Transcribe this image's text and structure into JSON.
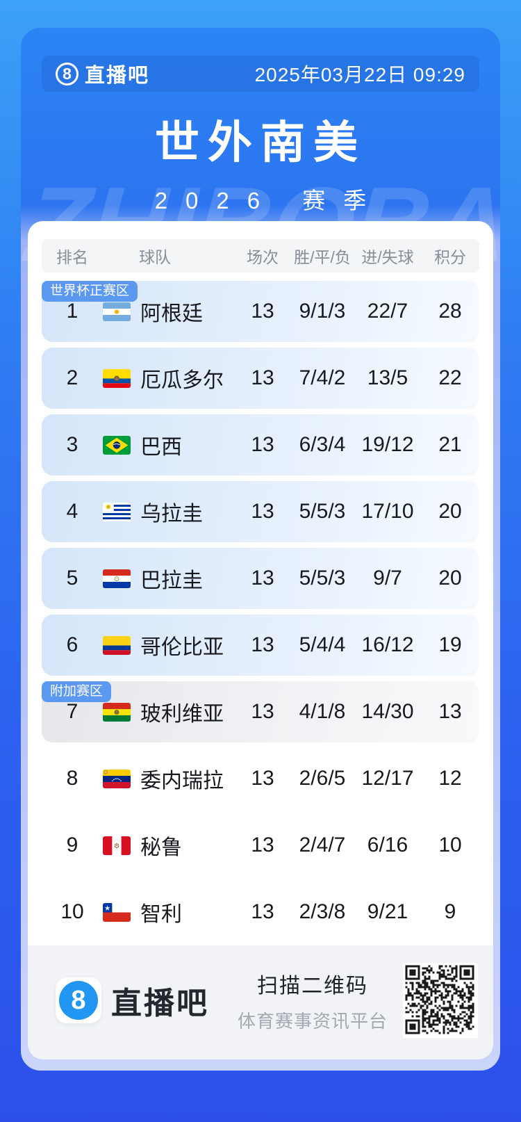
{
  "header": {
    "logo_glyph": "8",
    "logo_text": "直播吧",
    "datetime": "2025年03月22日 09:29"
  },
  "title": "世外南美",
  "subtitle": "2026 赛季",
  "watermark": "ZHIBOBA",
  "table": {
    "columns": [
      "排名",
      "球队",
      "场次",
      "胜/平/负",
      "进/失球",
      "积分"
    ],
    "zone_labels": {
      "qualify": "世界杯正赛区",
      "playoff": "附加赛区"
    },
    "rows": [
      {
        "rank": "1",
        "team": "阿根廷",
        "flag": "argentina",
        "played": "13",
        "wdl": "9/1/3",
        "goals": "22/7",
        "points": "28",
        "zone": "qualify",
        "badge": "世界杯正赛区"
      },
      {
        "rank": "2",
        "team": "厄瓜多尔",
        "flag": "ecuador",
        "played": "13",
        "wdl": "7/4/2",
        "goals": "13/5",
        "points": "22",
        "zone": "qualify",
        "badge": ""
      },
      {
        "rank": "3",
        "team": "巴西",
        "flag": "brazil",
        "played": "13",
        "wdl": "6/3/4",
        "goals": "19/12",
        "points": "21",
        "zone": "qualify",
        "badge": ""
      },
      {
        "rank": "4",
        "team": "乌拉圭",
        "flag": "uruguay",
        "played": "13",
        "wdl": "5/5/3",
        "goals": "17/10",
        "points": "20",
        "zone": "qualify",
        "badge": ""
      },
      {
        "rank": "5",
        "team": "巴拉圭",
        "flag": "paraguay",
        "played": "13",
        "wdl": "5/5/3",
        "goals": "9/7",
        "points": "20",
        "zone": "qualify",
        "badge": ""
      },
      {
        "rank": "6",
        "team": "哥伦比亚",
        "flag": "colombia",
        "played": "13",
        "wdl": "5/4/4",
        "goals": "16/12",
        "points": "19",
        "zone": "qualify",
        "badge": ""
      },
      {
        "rank": "7",
        "team": "玻利维亚",
        "flag": "bolivia",
        "played": "13",
        "wdl": "4/1/8",
        "goals": "14/30",
        "points": "13",
        "zone": "playoff",
        "badge": "附加赛区"
      },
      {
        "rank": "8",
        "team": "委内瑞拉",
        "flag": "venezuela",
        "played": "13",
        "wdl": "2/6/5",
        "goals": "12/17",
        "points": "12",
        "zone": "none",
        "badge": ""
      },
      {
        "rank": "9",
        "team": "秘鲁",
        "flag": "peru",
        "played": "13",
        "wdl": "2/4/7",
        "goals": "6/16",
        "points": "10",
        "zone": "none",
        "badge": ""
      },
      {
        "rank": "10",
        "team": "智利",
        "flag": "chile",
        "played": "13",
        "wdl": "2/3/8",
        "goals": "9/21",
        "points": "9",
        "zone": "none",
        "badge": ""
      }
    ]
  },
  "footer": {
    "logo_glyph": "8",
    "logo_text": "直播吧",
    "qr_title": "扫描二维码",
    "qr_subtitle": "体育赛事资讯平台"
  },
  "colors": {
    "page_top": "#3BA1F6",
    "page_bottom": "#2C4FEA",
    "badge_blue": "#5B99F0",
    "qualify_row": "#D5E6FA",
    "playoff_row": "#E5E7EB",
    "accent_logo": "#2196F3"
  }
}
